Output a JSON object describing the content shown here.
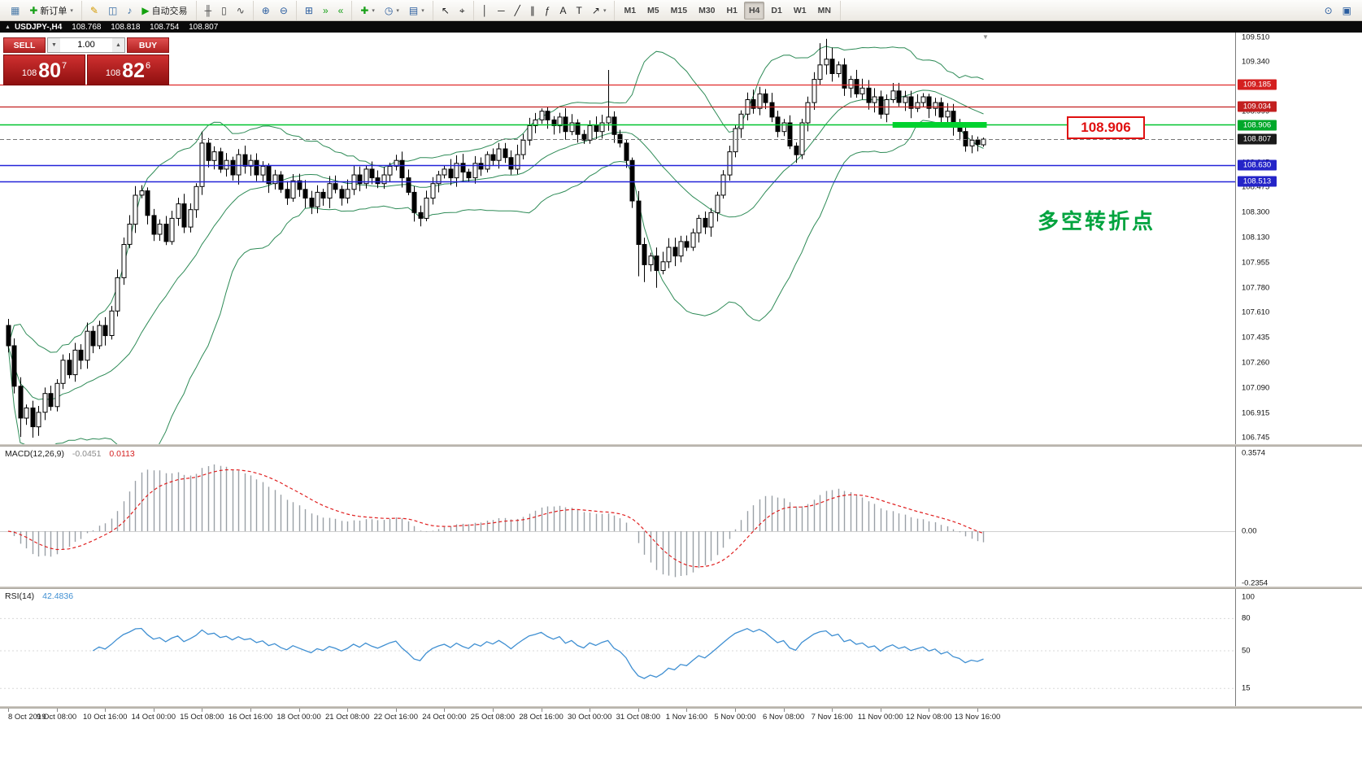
{
  "header": {
    "collapse_icon": "▲",
    "symbol": "USDJPY-,H4",
    "open": "108.768",
    "high": "108.818",
    "low": "108.754",
    "close": "108.807"
  },
  "toolbar": {
    "caret_glyph": "▾",
    "groups": [
      {
        "items": [
          {
            "n": "new-chart-icon",
            "g": "▦",
            "c": "#4a7aa8"
          },
          {
            "n": "new-order-button",
            "g": "✚",
            "c": "#18a018",
            "label": "新订单",
            "caret": true
          }
        ]
      },
      {
        "items": [
          {
            "n": "metaeditor-icon",
            "g": "✎",
            "c": "#d49a00"
          },
          {
            "n": "market-watch-icon",
            "g": "◫",
            "c": "#3a6ea5"
          },
          {
            "n": "alerts-icon",
            "g": "♪",
            "c": "#3a6ea5"
          },
          {
            "n": "autotrading-button",
            "g": "▶",
            "c": "#13a10e",
            "label": "自动交易"
          }
        ]
      },
      {
        "items": [
          {
            "n": "bar-chart-mode-icon",
            "g": "╫",
            "c": "#444"
          },
          {
            "n": "candlestick-mode-icon",
            "g": "▯",
            "c": "#444"
          },
          {
            "n": "line-chart-mode-icon",
            "g": "∿",
            "c": "#444"
          }
        ]
      },
      {
        "items": [
          {
            "n": "zoom-in-icon",
            "g": "⊕",
            "c": "#2a5d9f"
          },
          {
            "n": "zoom-out-icon",
            "g": "⊖",
            "c": "#2a5d9f"
          }
        ]
      },
      {
        "items": [
          {
            "n": "tile-windows-icon",
            "g": "⊞",
            "c": "#2a5d9f"
          },
          {
            "n": "auto-scroll-icon",
            "g": "»",
            "c": "#18a018"
          },
          {
            "n": "chart-shift-icon",
            "g": "«",
            "c": "#18a018"
          }
        ]
      },
      {
        "items": [
          {
            "n": "indicators-button",
            "g": "✚",
            "c": "#18a018",
            "caret": true
          },
          {
            "n": "periods-button",
            "g": "◷",
            "c": "#2a5d9f",
            "caret": true
          },
          {
            "n": "templates-button",
            "g": "▤",
            "c": "#2a5d9f",
            "caret": true
          }
        ]
      },
      {
        "items": [
          {
            "n": "cursor-tool-button",
            "g": "↖",
            "c": "#222"
          },
          {
            "n": "crosshair-tool-button",
            "g": "⌖",
            "c": "#222"
          }
        ]
      },
      {
        "items": [
          {
            "n": "vertical-line-tool-button",
            "g": "│",
            "c": "#222"
          },
          {
            "n": "horizontal-line-tool-button",
            "g": "─",
            "c": "#222"
          },
          {
            "n": "trendline-tool-button",
            "g": "╱",
            "c": "#222"
          },
          {
            "n": "channel-tool-button",
            "g": "∥",
            "c": "#222"
          },
          {
            "n": "fibonacci-tool-button",
            "g": "ƒ",
            "c": "#222"
          },
          {
            "n": "text-tool-button",
            "g": "A",
            "c": "#222"
          },
          {
            "n": "label-tool-button",
            "g": "T",
            "c": "#222"
          },
          {
            "n": "arrows-tool-button",
            "g": "↗",
            "c": "#222",
            "caret": true
          }
        ]
      }
    ],
    "timeframes": {
      "items": [
        "M1",
        "M5",
        "M15",
        "M30",
        "H1",
        "H4",
        "D1",
        "W1",
        "MN"
      ],
      "active": "H4"
    },
    "right_icons": [
      {
        "n": "search-icon",
        "g": "⊙",
        "c": "#2a5d9f"
      },
      {
        "n": "window-layout-icon",
        "g": "▣",
        "c": "#2a5d9f"
      }
    ]
  },
  "trade_panel": {
    "sell_label": "SELL",
    "buy_label": "BUY",
    "volume": "1.00",
    "vol_down_glyph": "▼",
    "vol_up_glyph": "▲",
    "sell_price_small": "108",
    "sell_price_big": "80",
    "sell_price_sup": "7",
    "buy_price_small": "108",
    "buy_price_big": "82",
    "buy_price_sup": "6"
  },
  "annotations": {
    "price_box": "108.906",
    "turning_point_text": "多空转折点",
    "shift_marker": "▼"
  },
  "price_axis": {
    "ticks": [
      "109.510",
      "109.340",
      "109.170",
      "108.999",
      "108.820",
      "108.645",
      "108.475",
      "108.300",
      "108.130",
      "107.955",
      "107.780",
      "107.610",
      "107.435",
      "107.260",
      "107.090",
      "106.915",
      "106.745"
    ]
  },
  "macd_panel": {
    "label": "MACD(12,26,9)",
    "value_main": "-0.0451",
    "value_signal": "0.0113",
    "axis": [
      "0.3574",
      "0.00",
      "-0.2354"
    ]
  },
  "rsi_panel": {
    "label": "RSI(14)",
    "value": "42.4836",
    "axis": [
      "100",
      "80",
      "50",
      "15"
    ],
    "levels": [
      80,
      50,
      15
    ]
  },
  "time_axis": {
    "labels": [
      "8 Oct 2019",
      "9 Oct 08:00",
      "10 Oct 16:00",
      "14 Oct 00:00",
      "15 Oct 08:00",
      "16 Oct 16:00",
      "18 Oct 00:00",
      "21 Oct 08:00",
      "22 Oct 16:00",
      "24 Oct 00:00",
      "25 Oct 08:00",
      "28 Oct 16:00",
      "30 Oct 00:00",
      "31 Oct 08:00",
      "1 Nov 16:00",
      "5 Nov 00:00",
      "6 Nov 08:00",
      "7 Nov 16:00",
      "11 Nov 00:00",
      "12 Nov 08:00",
      "13 Nov 16:00"
    ]
  },
  "chart_data": {
    "type": "candlestick",
    "symbol": "USDJPY",
    "timeframe": "H4",
    "title": "USDJPY-,H4",
    "ohlc_display": {
      "open": 108.768,
      "high": 108.818,
      "low": 108.754,
      "close": 108.807
    },
    "y_axis": {
      "min": 106.7,
      "max": 109.55
    },
    "macd_axis": {
      "max": 0.3574,
      "min": -0.2354
    },
    "rsi_axis": {
      "min": 0,
      "max": 100
    },
    "indicators": {
      "bollinger": {
        "period": 20,
        "deviation": 2
      },
      "macd": {
        "fast": 12,
        "slow": 26,
        "signal": 9,
        "current_main": -0.0451,
        "current_signal": 0.0113
      },
      "rsi": {
        "period": 14,
        "current": 42.4836
      }
    },
    "colors": {
      "bands": "#2e8b57",
      "highlight": "#00d22e",
      "macd_hist": "#9aa0a6",
      "macd_signal": "#e02020",
      "rsi": "#3f8fd2",
      "bull": "#ffffff",
      "bear": "#000000"
    },
    "levels": [
      {
        "price": 109.185,
        "label": "109.185",
        "line_color": "#e02828",
        "badge_bg": "#d42020",
        "style": "solid",
        "width": 1.2
      },
      {
        "price": 109.034,
        "label": "109.034",
        "line_color": "#c22020",
        "badge_bg": "#c22020",
        "style": "solid",
        "width": 1.2
      },
      {
        "price": 108.906,
        "label": "108.906",
        "line_color": "#00c42e",
        "badge_bg": "#00a82a",
        "style": "solid",
        "width": 1.5
      },
      {
        "price": 108.807,
        "label": "108.807",
        "line_color": "#777777",
        "badge_bg": "#1a1a1a",
        "style": "dashed",
        "width": 1
      },
      {
        "price": 108.63,
        "label": "108.630",
        "line_color": "#2424d8",
        "badge_bg": "#2424c8",
        "style": "solid",
        "width": 1.4
      },
      {
        "price": 108.513,
        "label": "108.513",
        "line_color": "#2424d8",
        "badge_bg": "#2424c8",
        "style": "solid",
        "width": 1.4
      }
    ],
    "highlight_segment": {
      "price": 108.906,
      "from_bar": 146,
      "to_bar": 161
    },
    "candles": {
      "first_open": 107.52,
      "seed": 11,
      "wick_min": 0.02,
      "wick_rand": 0.05,
      "closes": [
        107.38,
        107.1,
        106.88,
        106.95,
        106.82,
        106.92,
        107.05,
        106.96,
        107.12,
        107.28,
        107.18,
        107.35,
        107.28,
        107.48,
        107.38,
        107.52,
        107.45,
        107.62,
        107.85,
        108.08,
        108.22,
        108.42,
        108.45,
        108.28,
        108.15,
        108.22,
        108.1,
        108.26,
        108.36,
        108.2,
        108.32,
        108.48,
        108.78,
        108.66,
        108.72,
        108.6,
        108.66,
        108.56,
        108.7,
        108.62,
        108.66,
        108.56,
        108.62,
        108.5,
        108.56,
        108.46,
        108.4,
        108.52,
        108.46,
        108.4,
        108.34,
        108.44,
        108.4,
        108.5,
        108.46,
        108.4,
        108.46,
        108.56,
        108.5,
        108.6,
        108.54,
        108.5,
        108.56,
        108.62,
        108.66,
        108.54,
        108.44,
        108.3,
        108.26,
        108.4,
        108.5,
        108.56,
        108.6,
        108.54,
        108.64,
        108.58,
        108.54,
        108.64,
        108.6,
        108.7,
        108.66,
        108.74,
        108.68,
        108.6,
        108.7,
        108.8,
        108.9,
        108.94,
        109.0,
        108.94,
        108.9,
        108.96,
        108.86,
        108.92,
        108.84,
        108.8,
        108.9,
        108.86,
        108.92,
        108.96,
        108.84,
        108.78,
        108.66,
        108.38,
        108.08,
        107.94,
        108.0,
        107.9,
        107.96,
        108.06,
        108.0,
        108.1,
        108.06,
        108.16,
        108.26,
        108.2,
        108.3,
        108.42,
        108.56,
        108.72,
        108.88,
        108.98,
        109.08,
        109.02,
        109.12,
        109.06,
        108.96,
        108.86,
        108.92,
        108.76,
        108.7,
        108.92,
        109.06,
        109.22,
        109.32,
        109.36,
        109.26,
        109.32,
        109.16,
        109.22,
        109.12,
        109.16,
        109.06,
        109.1,
        108.98,
        109.08,
        109.14,
        109.06,
        109.1,
        109.02,
        109.06,
        109.1,
        109.02,
        109.06,
        108.96,
        109.0,
        108.9,
        108.86,
        108.76,
        108.8,
        108.77,
        108.807
      ],
      "overrides": {
        "0": {
          "o": 107.52
        },
        "2": {
          "l": 106.75
        },
        "4": {
          "l": 106.745
        },
        "32": {
          "h": 108.86
        },
        "99": {
          "h": 109.285
        },
        "104": {
          "l": 107.86
        },
        "105": {
          "l": 107.82
        },
        "107": {
          "l": 107.78
        },
        "134": {
          "h": 109.47
        },
        "135": {
          "h": 109.5
        },
        "136": {
          "h": 109.44
        },
        "159": {
          "l": 108.71
        },
        "161": {
          "o": 108.768,
          "h": 108.818,
          "l": 108.754,
          "c": 108.807
        }
      }
    }
  }
}
